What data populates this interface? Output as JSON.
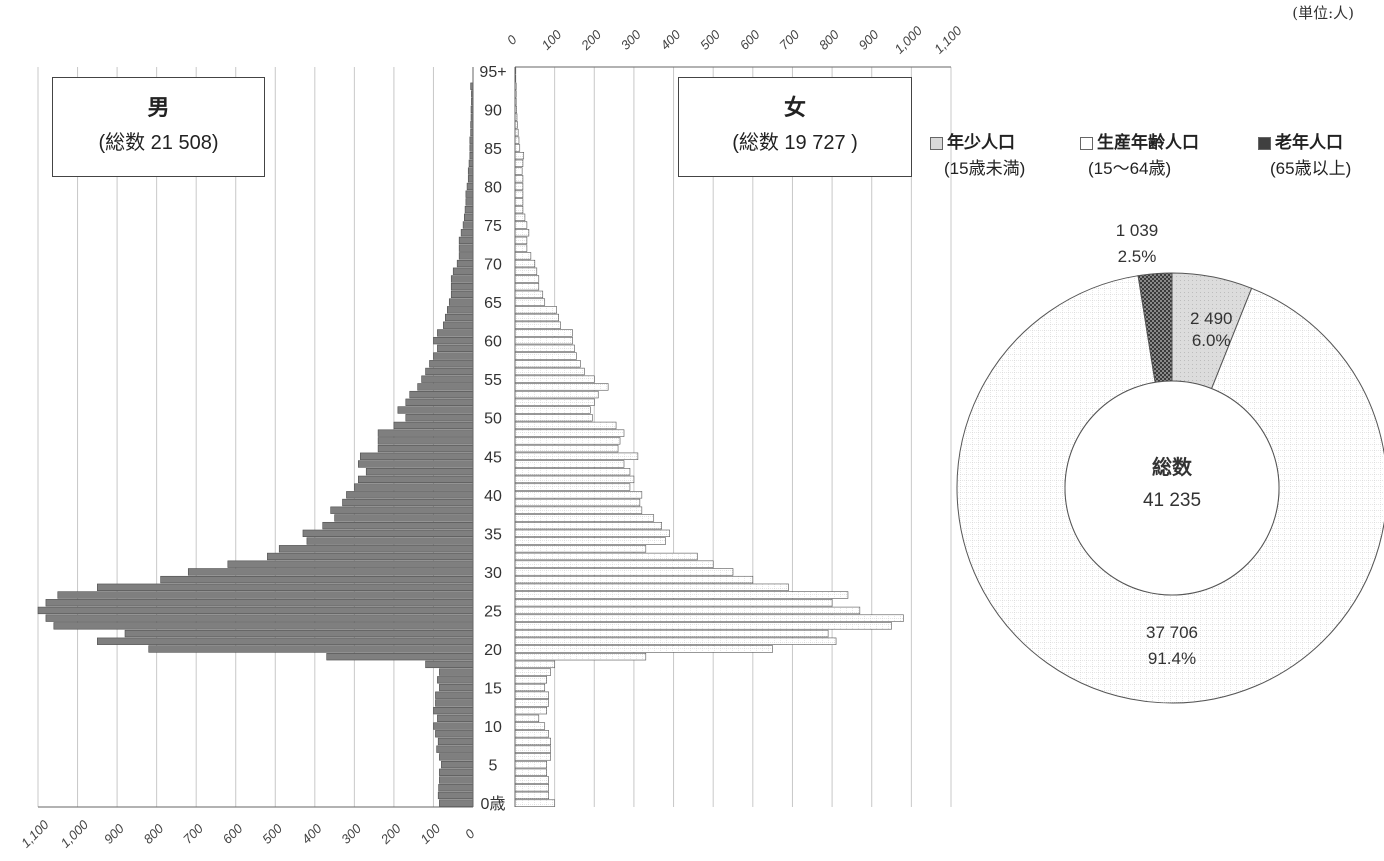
{
  "unit_label": "(単位:人)",
  "male_box": {
    "title": "男",
    "total": "(総数 21 508)"
  },
  "female_box": {
    "title": "女",
    "total": "(総数 19 727 )"
  },
  "legend": [
    {
      "label": "年少人口",
      "note": "(15歳未満)",
      "color": "#d9d9d9",
      "pattern": "light"
    },
    {
      "label": "生産年齢人口",
      "note": "(15〜64歳)",
      "color": "#ffffff",
      "pattern": "grid"
    },
    {
      "label": "老年人口",
      "note": "(65歳以上)",
      "color": "#404040",
      "pattern": "dots"
    }
  ],
  "chart_data": [
    {
      "type": "bar",
      "orientation": "horizontal",
      "subtype": "population-pyramid",
      "age_axis": {
        "ticks": [
          "0歳",
          "5",
          "10",
          "15",
          "20",
          "25",
          "30",
          "35",
          "40",
          "45",
          "50",
          "55",
          "60",
          "65",
          "70",
          "75",
          "80",
          "85",
          "90",
          "95+"
        ]
      },
      "value_axis": {
        "ticks": [
          "0",
          "100",
          "200",
          "300",
          "400",
          "500",
          "600",
          "700",
          "800",
          "900",
          "1,000",
          "1,100"
        ],
        "range": [
          0,
          1100
        ]
      },
      "colors": {
        "male": "#7f7f7f",
        "female": "#ffffff"
      },
      "ages": [
        0,
        1,
        2,
        3,
        4,
        5,
        6,
        7,
        8,
        9,
        10,
        11,
        12,
        13,
        14,
        15,
        16,
        17,
        18,
        19,
        20,
        21,
        22,
        23,
        24,
        25,
        26,
        27,
        28,
        29,
        30,
        31,
        32,
        33,
        34,
        35,
        36,
        37,
        38,
        39,
        40,
        41,
        42,
        43,
        44,
        45,
        46,
        47,
        48,
        49,
        50,
        51,
        52,
        53,
        54,
        55,
        56,
        57,
        58,
        59,
        60,
        61,
        62,
        63,
        64,
        65,
        66,
        67,
        68,
        69,
        70,
        71,
        72,
        73,
        74,
        75,
        76,
        77,
        78,
        79,
        80,
        81,
        82,
        83,
        84,
        85,
        86,
        87,
        88,
        89,
        90,
        91,
        92,
        93,
        94,
        95
      ],
      "series": [
        {
          "name": "男",
          "values": [
            85,
            88,
            87,
            85,
            85,
            80,
            85,
            92,
            88,
            95,
            100,
            90,
            100,
            95,
            95,
            85,
            90,
            85,
            120,
            370,
            820,
            950,
            880,
            1060,
            1080,
            1100,
            1080,
            1050,
            950,
            790,
            720,
            620,
            520,
            490,
            420,
            430,
            380,
            350,
            360,
            330,
            320,
            300,
            290,
            270,
            290,
            285,
            240,
            240,
            240,
            200,
            170,
            190,
            170,
            160,
            140,
            130,
            120,
            110,
            100,
            90,
            100,
            90,
            75,
            70,
            65,
            60,
            55,
            55,
            55,
            50,
            40,
            35,
            35,
            35,
            30,
            25,
            22,
            20,
            18,
            18,
            15,
            12,
            12,
            10,
            8,
            8,
            8,
            6,
            6,
            5,
            5,
            4,
            4,
            6
          ]
        },
        {
          "name": "女",
          "values": [
            100,
            85,
            85,
            85,
            80,
            80,
            90,
            90,
            90,
            85,
            75,
            60,
            80,
            85,
            85,
            75,
            80,
            90,
            100,
            330,
            650,
            810,
            790,
            950,
            980,
            870,
            800,
            840,
            690,
            600,
            550,
            500,
            460,
            330,
            380,
            390,
            370,
            350,
            320,
            315,
            320,
            290,
            300,
            290,
            275,
            310,
            260,
            265,
            275,
            255,
            195,
            190,
            200,
            210,
            235,
            200,
            175,
            165,
            155,
            150,
            145,
            145,
            115,
            110,
            105,
            75,
            70,
            60,
            60,
            55,
            50,
            40,
            30,
            30,
            35,
            30,
            25,
            20,
            20,
            20,
            20,
            20,
            18,
            20,
            22,
            12,
            10,
            8,
            6,
            5,
            4,
            3,
            3,
            3,
            2,
            2
          ]
        }
      ]
    },
    {
      "type": "pie",
      "subtype": "donut",
      "center_label": "総数",
      "center_value": "41 235",
      "slices": [
        {
          "name": "年少人口",
          "value": 2490,
          "value_label": "2 490",
          "percent_label": "6.0%",
          "color": "#d9d9d9"
        },
        {
          "name": "生産年齢人口",
          "value": 37706,
          "value_label": "37 706",
          "percent_label": "91.4%",
          "color": "#ffffff"
        },
        {
          "name": "老年人口",
          "value": 1039,
          "value_label": "1 039",
          "percent_label": "2.5%",
          "color": "#404040"
        }
      ]
    }
  ]
}
